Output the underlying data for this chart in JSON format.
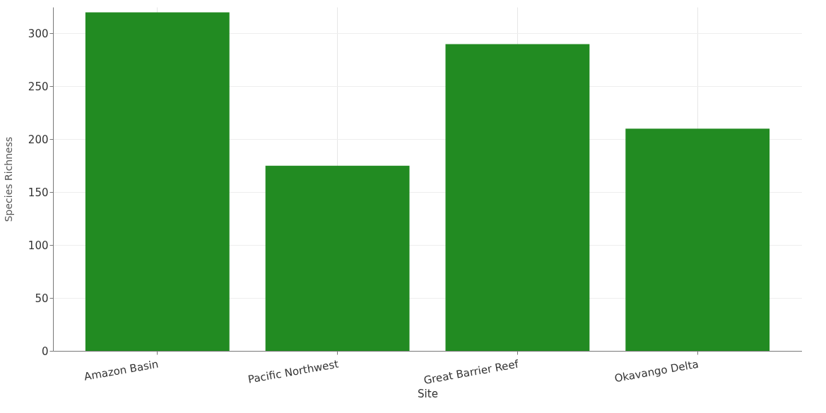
{
  "chart_data": {
    "type": "bar",
    "xlabel": "Site",
    "ylabel": "Species Richness",
    "categories": [
      "Amazon Basin",
      "Pacific Northwest",
      "Great Barrier Reef",
      "Okavango Delta"
    ],
    "values": [
      320,
      175,
      290,
      210
    ],
    "color": "#228b22",
    "ylim": [
      0,
      325
    ],
    "yticks": [
      0,
      50,
      100,
      150,
      200,
      250,
      300
    ],
    "grid": true
  }
}
